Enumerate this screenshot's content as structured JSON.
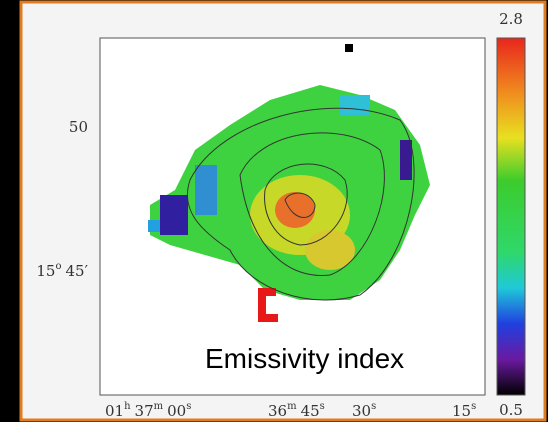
{
  "labels": {
    "y_ticks": [
      {
        "main": "50"
      },
      {
        "main": "15",
        "sup": "o",
        "after": "45′"
      }
    ],
    "x_ticks": [
      {
        "parts": [
          {
            "main": "01",
            "sup": "h"
          },
          {
            "main": "37",
            "sup": "m"
          },
          {
            "main": "00",
            "sup": "s"
          }
        ]
      },
      {
        "parts": [
          {
            "main": "36",
            "sup": "m"
          },
          {
            "main": "45",
            "sup": "s"
          }
        ]
      },
      {
        "parts": [
          {
            "main": "30",
            "sup": "s"
          }
        ]
      },
      {
        "parts": [
          {
            "main": "15",
            "sup": "s"
          }
        ]
      }
    ],
    "colorbar_max": "2.8",
    "colorbar_min": "0.5",
    "annotation": "Emissivity index"
  }
}
